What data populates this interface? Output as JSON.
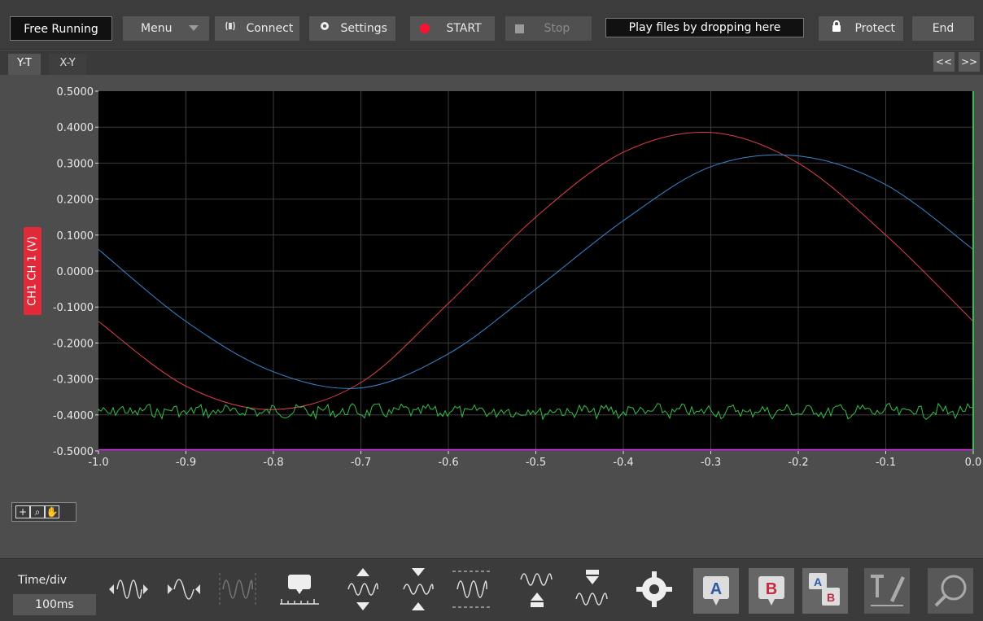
{
  "toolbar": {
    "mode": "Free Running",
    "menu": "Menu",
    "connect": "Connect",
    "settings": "Settings",
    "start": "START",
    "stop": "Stop",
    "drop_hint": "Play files by dropping here",
    "protect": "Protect",
    "end": "End"
  },
  "tabs": [
    {
      "label": "Y-T",
      "active": true
    },
    {
      "label": "X-Y",
      "active": false
    }
  ],
  "nav": {
    "prev": "<<",
    "next": ">>"
  },
  "channel_label": "CH1  CH 1 (V)",
  "timediv": {
    "label": "Time/div",
    "value": "100ms"
  },
  "colors": {
    "red_series": "#e0404a",
    "blue_series": "#3c86d0",
    "green_series": "#33c14a",
    "magenta_series": "#c43ad8",
    "start_dot": "#ff1133"
  },
  "bottom_icons": [
    "zoom-out-time-icon",
    "zoom-in-time-icon",
    "fit-time-icon",
    "time-cursor-icon",
    "expand-vertical-icon",
    "shrink-vertical-icon",
    "fit-vertical-icon",
    "shift-up-icon",
    "shift-down-icon",
    "settings-gear-icon",
    "cursor-a-icon",
    "cursor-b-icon",
    "cursor-ab-icon",
    "annotation-pen-icon",
    "search-icon"
  ],
  "chart_data": {
    "type": "line",
    "xlim": [
      -1.0,
      0.0
    ],
    "ylim": [
      -0.5,
      0.5
    ],
    "x_ticks": [
      "-1.0",
      "-0.9",
      "-0.8",
      "-0.7",
      "-0.6",
      "-0.5",
      "-0.4",
      "-0.3",
      "-0.2",
      "-0.1",
      "0.0"
    ],
    "y_ticks": [
      "0.5000",
      "0.4000",
      "0.3000",
      "0.2000",
      "0.1000",
      "0.0000",
      "-0.1000",
      "-0.2000",
      "-0.3000",
      "-0.4000",
      "-0.5000"
    ],
    "grid": true,
    "series": [
      {
        "color": "#e0404a",
        "x": [
          -1.0,
          -0.9,
          -0.8,
          -0.7,
          -0.6,
          -0.5,
          -0.4,
          -0.3,
          -0.2,
          -0.1,
          0.0
        ],
        "y": [
          -0.14,
          -0.32,
          -0.385,
          -0.31,
          -0.09,
          0.15,
          0.33,
          0.385,
          0.3,
          0.1,
          -0.14
        ]
      },
      {
        "color": "#3c86d0",
        "x": [
          -1.0,
          -0.9,
          -0.8,
          -0.7,
          -0.6,
          -0.5,
          -0.4,
          -0.3,
          -0.2,
          -0.1,
          0.0
        ],
        "y": [
          0.06,
          -0.14,
          -0.28,
          -0.325,
          -0.23,
          -0.05,
          0.14,
          0.29,
          0.32,
          0.24,
          0.06
        ]
      },
      {
        "color": "#33c14a",
        "x": [
          -1.0,
          -0.5,
          0.0
        ],
        "y": [
          -0.39,
          -0.39,
          -0.39
        ]
      },
      {
        "color": "#c43ad8",
        "x": [
          -1.0,
          -0.5,
          0.0
        ],
        "y": [
          -0.497,
          -0.497,
          -0.497
        ]
      }
    ]
  }
}
